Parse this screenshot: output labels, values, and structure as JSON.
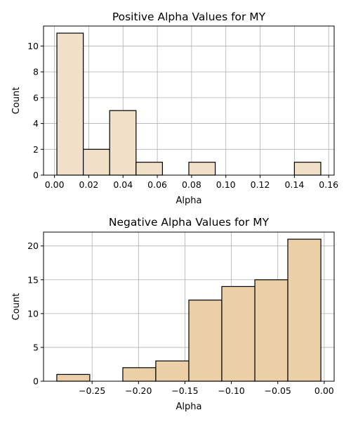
{
  "chart_data": [
    {
      "type": "bar",
      "subtype": "histogram",
      "title": "Positive Alpha Values for MY",
      "xlabel": "Alpha",
      "ylabel": "Count",
      "bin_edges": [
        0.0014,
        0.0168,
        0.0322,
        0.0476,
        0.063,
        0.0784,
        0.0938,
        0.1092,
        0.1246,
        0.14,
        0.1554
      ],
      "values": [
        11,
        2,
        5,
        1,
        0,
        1,
        0,
        0,
        0,
        1
      ],
      "xlim": [
        -0.0064,
        0.1632
      ],
      "ylim": [
        0,
        11.55
      ],
      "xticks": [
        0.0,
        0.02,
        0.04,
        0.06,
        0.08,
        0.1,
        0.12,
        0.14,
        0.16
      ],
      "xtick_labels": [
        "0.00",
        "0.02",
        "0.04",
        "0.06",
        "0.08",
        "0.10",
        "0.12",
        "0.14",
        "0.16"
      ],
      "yticks": [
        0,
        2,
        4,
        6,
        8,
        10
      ],
      "ytick_labels": [
        "0",
        "2",
        "4",
        "6",
        "8",
        "10"
      ],
      "grid": true,
      "bar_color": "#f0e0c8",
      "edge_color": "#000000",
      "grid_color": "#b0b0b0"
    },
    {
      "type": "bar",
      "subtype": "histogram",
      "title": "Negative Alpha Values for MY",
      "xlabel": "Alpha",
      "ylabel": "Count",
      "bin_edges": [
        -0.288,
        -0.2525,
        -0.2169,
        -0.1814,
        -0.1458,
        -0.1103,
        -0.0747,
        -0.0392,
        -0.0036
      ],
      "values": [
        1,
        0,
        2,
        3,
        12,
        14,
        15,
        21
      ],
      "xlim": [
        -0.3023,
        0.0107
      ],
      "ylim": [
        0,
        22.05
      ],
      "xticks": [
        -0.25,
        -0.2,
        -0.15,
        -0.1,
        -0.05,
        0.0
      ],
      "xtick_labels": [
        "−0.25",
        "−0.20",
        "−0.15",
        "−0.10",
        "−0.05",
        "0.00"
      ],
      "yticks": [
        0,
        5,
        10,
        15,
        20
      ],
      "ytick_labels": [
        "0",
        "5",
        "10",
        "15",
        "20"
      ],
      "grid": true,
      "bar_color": "#ebcfa6",
      "edge_color": "#000000",
      "grid_color": "#b0b0b0"
    }
  ]
}
